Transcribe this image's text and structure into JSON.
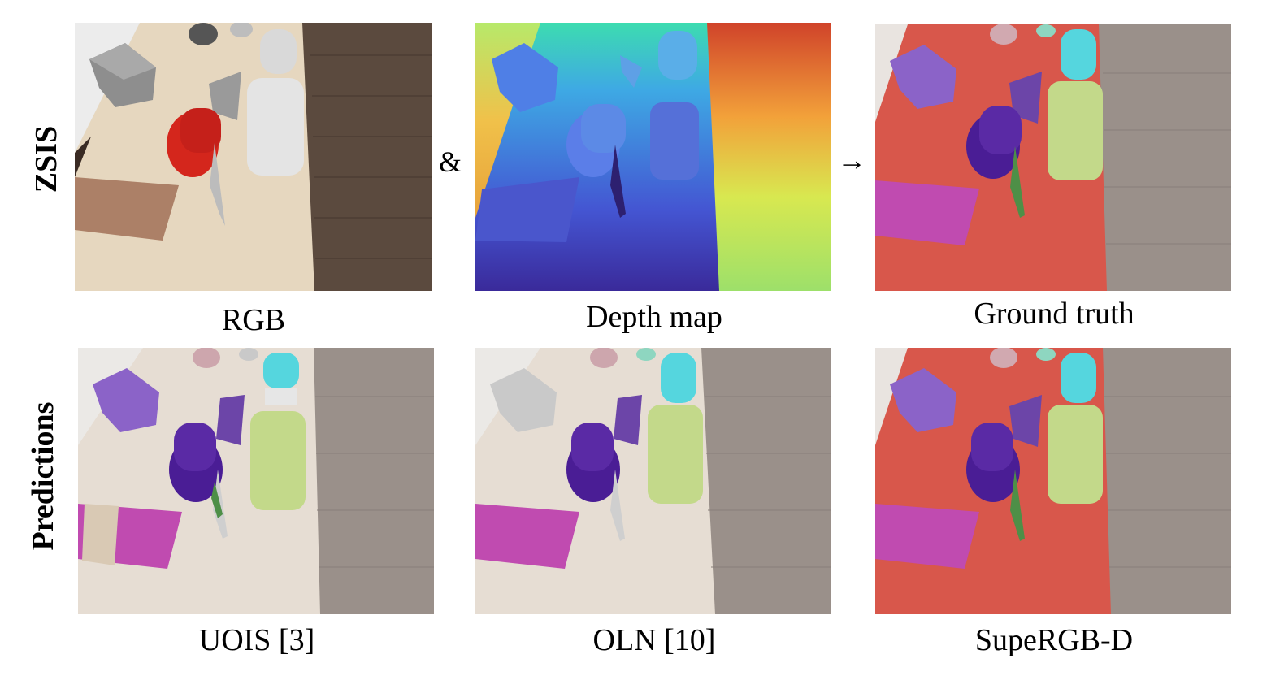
{
  "rows": {
    "top_label": "ZSIS",
    "bottom_label": "Predictions"
  },
  "operators": {
    "and_symbol": "&",
    "arrow_symbol": "→"
  },
  "captions": {
    "rgb": "RGB",
    "depth": "Depth map",
    "ground_truth": "Ground truth",
    "uois": "UOIS [3]",
    "oln": "OLN [10]",
    "supergbd": "SupeRGB-D"
  },
  "colors": {
    "table_wood": "#e6d7bf",
    "floor_dark": "#5b4a3e",
    "floor_grey": "#9a908a",
    "table_red_mask": "#d8574b",
    "purple_box": "#8b63c8",
    "indigo_cylinder": "#4a1d95",
    "lime_object": "#c3d98a",
    "cyan_bottle": "#55d6de",
    "magenta_mat": "#c04bb0",
    "green_knife": "#4e8f47",
    "red_cylinder": "#d4261c"
  }
}
